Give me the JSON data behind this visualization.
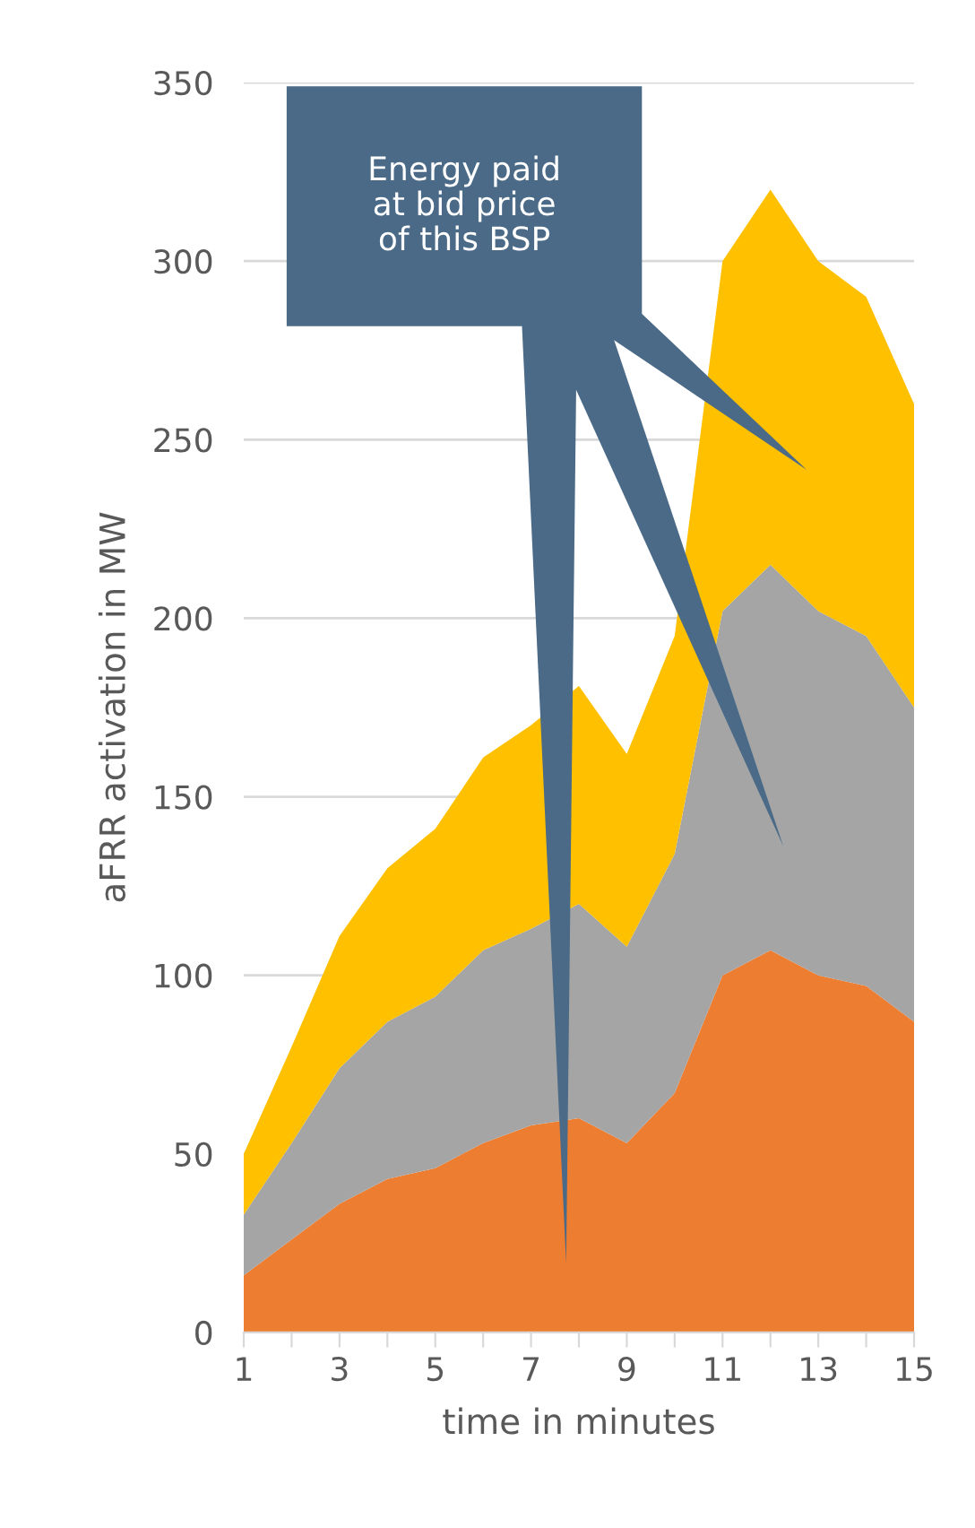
{
  "chart_data": {
    "type": "area",
    "stacked": true,
    "xlabel": "time in minutes",
    "ylabel": "aFRR activation in MW",
    "x": [
      1,
      2,
      3,
      4,
      5,
      6,
      7,
      8,
      9,
      10,
      11,
      12,
      13,
      14,
      15
    ],
    "series": [
      {
        "color": "#ed7d31",
        "values": [
          16,
          26,
          36,
          43,
          46,
          53,
          58,
          60,
          53,
          67,
          100,
          107,
          100,
          97,
          87
        ]
      },
      {
        "color": "#a5a5a5",
        "values": [
          17,
          27,
          38,
          44,
          48,
          54,
          55,
          60,
          55,
          67,
          102,
          108,
          102,
          98,
          88
        ]
      },
      {
        "color": "#ffc000",
        "values": [
          17,
          27,
          37,
          43,
          47,
          54,
          57,
          61,
          54,
          61,
          98,
          105,
          98,
          95,
          85
        ]
      }
    ],
    "xlim": [
      1,
      15
    ],
    "xticks": [
      1,
      {
        "value": 2,
        "label": null
      },
      3,
      {
        "value": 4,
        "label": null
      },
      5,
      {
        "value": 6,
        "label": null
      },
      7,
      {
        "value": 8,
        "label": null
      },
      9,
      {
        "value": 10,
        "label": null
      },
      11,
      {
        "value": 12,
        "label": null
      },
      13,
      {
        "value": 14,
        "label": null
      },
      15
    ],
    "ylim": [
      0,
      350
    ],
    "yticks": [
      0,
      50,
      100,
      150,
      200,
      250,
      300,
      350
    ],
    "grid": "y",
    "legend": false,
    "annotations": [
      "Energy paid\nat bid price\nof this BSP"
    ]
  }
}
